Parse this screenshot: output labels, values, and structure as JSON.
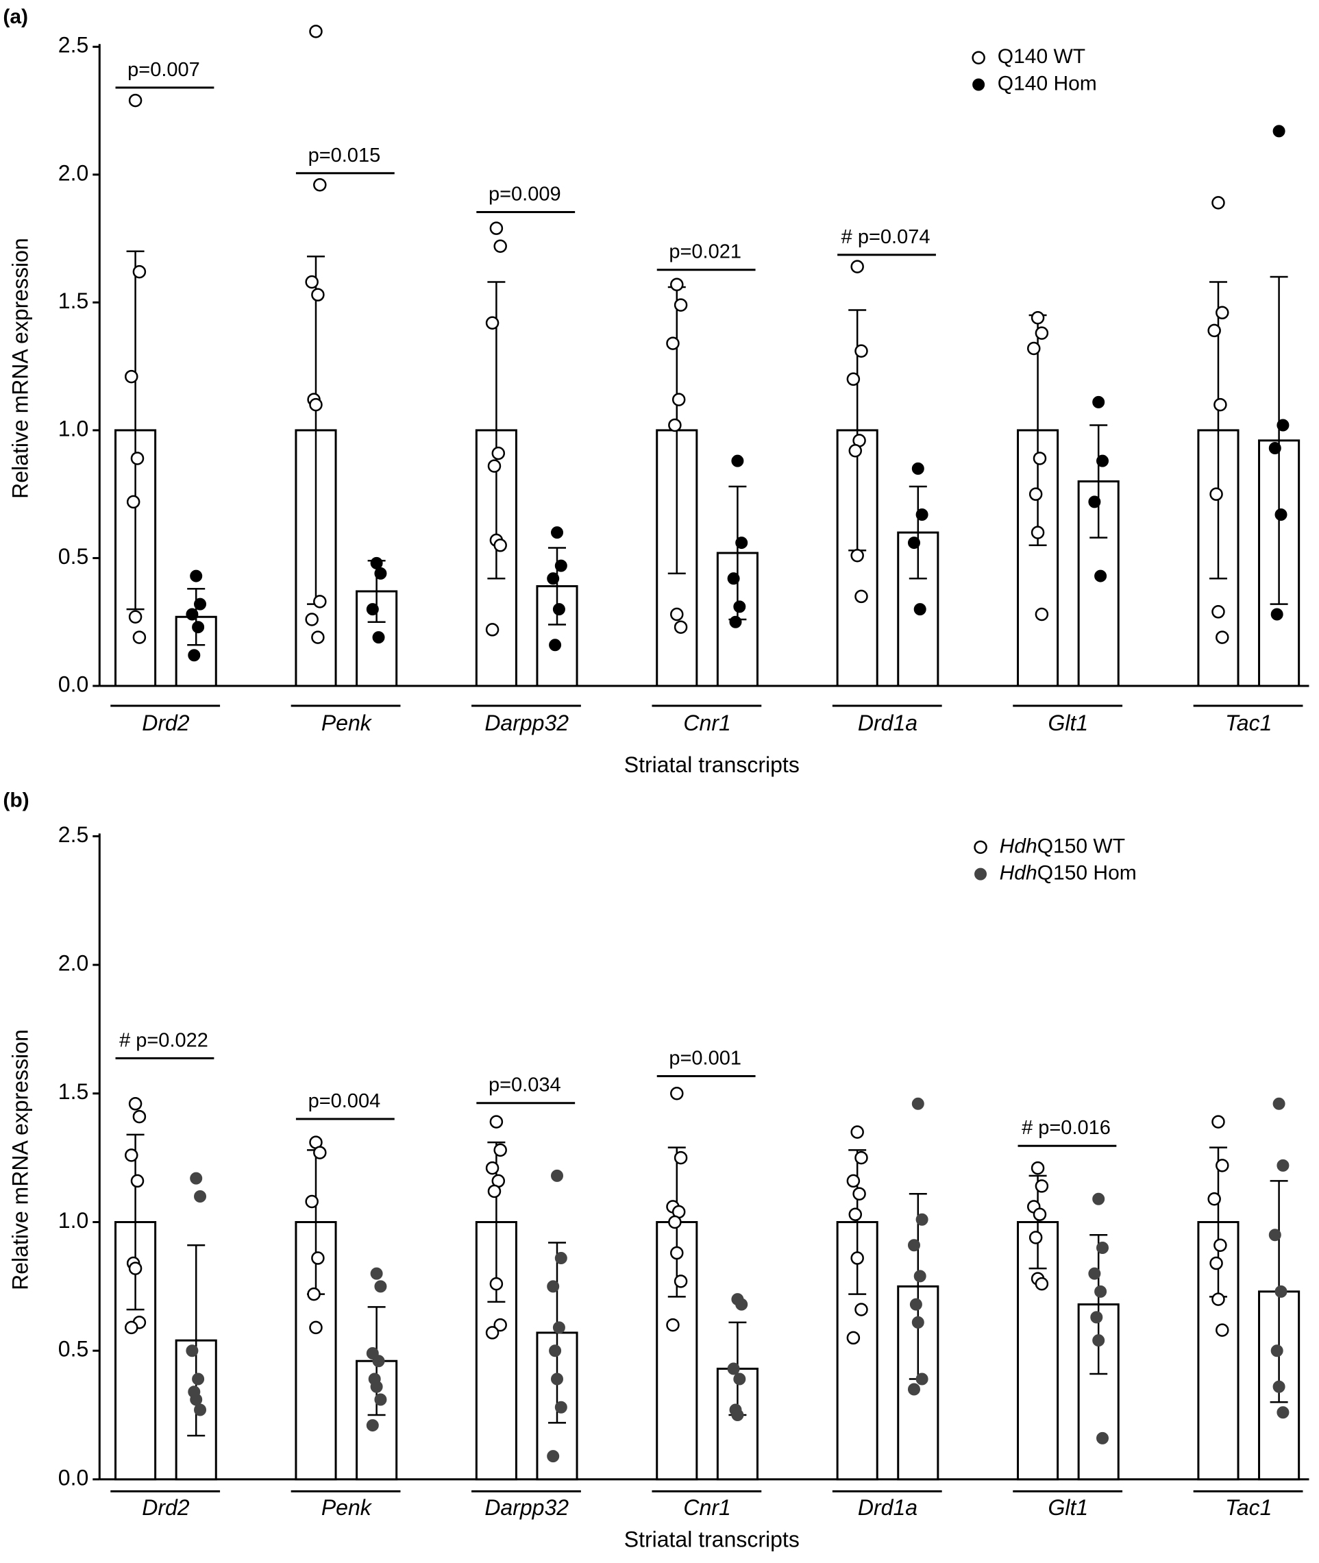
{
  "chart_data": [
    {
      "type": "bar",
      "panel": "(a)",
      "ylabel": "Relative mRNA expression",
      "xlabel": "Striatal transcripts",
      "categories": [
        "Drd2",
        "Penk",
        "Darpp32",
        "Cnr1",
        "Drd1a",
        "Glt1",
        "Tac1"
      ],
      "annotations": [
        "p=0.007",
        "p=0.015",
        "p=0.009",
        "p=0.021",
        "# p=0.074",
        null,
        null
      ],
      "ylim": [
        0,
        2.5
      ],
      "yticks": [
        {
          "value": 0,
          "label": "0.0"
        },
        0.5,
        {
          "value": 1,
          "label": "1.0"
        },
        1.5,
        {
          "value": 2,
          "label": "2.0"
        },
        2.5
      ],
      "legend": "upper right",
      "series": [
        {
          "name": "Q140 WT",
          "color": "#000000",
          "marker": "open",
          "values": [
            1,
            1,
            1,
            1,
            1,
            1,
            1
          ],
          "errors": [
            0.7,
            0.68,
            0.58,
            0.56,
            0.47,
            0.45,
            0.58
          ],
          "points": [
            [
              2.29,
              1.62,
              1.21,
              0.89,
              0.72,
              0.27,
              0.19
            ],
            [
              2.56,
              1.96,
              1.58,
              1.53,
              1.12,
              1.1,
              0.33,
              0.26,
              0.19
            ],
            [
              1.79,
              1.72,
              1.42,
              0.91,
              0.86,
              0.57,
              0.55,
              0.22
            ],
            [
              1.57,
              1.49,
              1.34,
              1.12,
              1.02,
              0.28,
              0.23
            ],
            [
              1.64,
              1.31,
              1.2,
              0.96,
              0.92,
              0.51,
              0.35
            ],
            [
              1.44,
              1.38,
              1.32,
              0.89,
              0.75,
              0.6,
              0.28
            ],
            [
              1.89,
              1.46,
              1.39,
              1.1,
              0.75,
              0.29,
              0.19
            ]
          ]
        },
        {
          "name": "Q140 Hom",
          "color": "#000000",
          "marker": "filled",
          "values": [
            0.27,
            0.37,
            0.39,
            0.52,
            0.6,
            0.8,
            0.96
          ],
          "errors": [
            0.11,
            0.12,
            0.15,
            0.26,
            0.18,
            0.22,
            0.64
          ],
          "points": [
            [
              0.43,
              0.32,
              0.28,
              0.23,
              0.12
            ],
            [
              0.48,
              0.44,
              0.3,
              0.19
            ],
            [
              0.6,
              0.47,
              0.42,
              0.3,
              0.16
            ],
            [
              0.88,
              0.56,
              0.42,
              0.31,
              0.25
            ],
            [
              0.85,
              0.67,
              0.56,
              0.3
            ],
            [
              1.11,
              0.88,
              0.72,
              0.43
            ],
            [
              2.17,
              1.02,
              0.93,
              0.67,
              0.28
            ]
          ]
        }
      ]
    },
    {
      "type": "bar",
      "panel": "(b)",
      "ylabel": "Relative mRNA expression",
      "xlabel": "Striatal transcripts",
      "categories": [
        "Drd2",
        "Penk",
        "Darpp32",
        "Cnr1",
        "Drd1a",
        "Glt1",
        "Tac1"
      ],
      "annotations": [
        "# p=0.022",
        "p=0.004",
        "p=0.034",
        "p=0.001",
        null,
        "# p=0.016",
        null
      ],
      "ylim": [
        0,
        2.5
      ],
      "yticks": [
        {
          "value": 0,
          "label": "0.0"
        },
        0.5,
        {
          "value": 1,
          "label": "1.0"
        },
        1.5,
        {
          "value": 2,
          "label": "2.0"
        },
        2.5
      ],
      "legend": "upper right",
      "series": [
        {
          "name": "HdhQ150 WT",
          "color": "#000000",
          "marker": "open",
          "values": [
            1,
            1,
            1,
            1,
            1,
            1,
            1
          ],
          "errors": [
            0.34,
            0.28,
            0.31,
            0.29,
            0.28,
            0.18,
            0.29
          ],
          "points": [
            [
              1.46,
              1.41,
              1.26,
              1.16,
              0.84,
              0.82,
              0.61,
              0.59
            ],
            [
              1.31,
              1.27,
              1.08,
              0.86,
              0.72,
              0.59
            ],
            [
              1.39,
              1.28,
              1.21,
              1.16,
              1.12,
              0.76,
              0.6,
              0.57
            ],
            [
              1.5,
              1.25,
              1.06,
              1.04,
              1.0,
              0.88,
              0.77,
              0.6
            ],
            [
              1.35,
              1.25,
              1.16,
              1.11,
              1.03,
              0.86,
              0.66,
              0.55
            ],
            [
              1.21,
              1.14,
              1.06,
              1.03,
              0.94,
              0.78,
              0.76
            ],
            [
              1.39,
              1.22,
              1.09,
              0.91,
              0.84,
              0.7,
              0.58
            ]
          ]
        },
        {
          "name": "HdhQ150 Hom",
          "color": "#444444",
          "marker": "filled",
          "values": [
            0.54,
            0.46,
            0.57,
            0.43,
            0.75,
            0.68,
            0.73
          ],
          "errors": [
            0.37,
            0.21,
            0.35,
            0.18,
            0.36,
            0.27,
            0.43
          ],
          "points": [
            [
              1.17,
              1.1,
              0.5,
              0.39,
              0.34,
              0.31,
              0.27
            ],
            [
              0.8,
              0.75,
              0.49,
              0.46,
              0.39,
              0.36,
              0.31,
              0.21
            ],
            [
              1.18,
              0.86,
              0.75,
              0.59,
              0.5,
              0.39,
              0.28,
              0.09
            ],
            [
              0.7,
              0.68,
              0.43,
              0.39,
              0.27,
              0.25
            ],
            [
              1.46,
              1.01,
              0.91,
              0.79,
              0.68,
              0.61,
              0.39,
              0.35
            ],
            [
              1.09,
              0.9,
              0.8,
              0.73,
              0.63,
              0.54,
              0.16
            ],
            [
              1.46,
              1.22,
              0.95,
              0.73,
              0.5,
              0.36,
              0.26
            ]
          ]
        }
      ]
    }
  ]
}
